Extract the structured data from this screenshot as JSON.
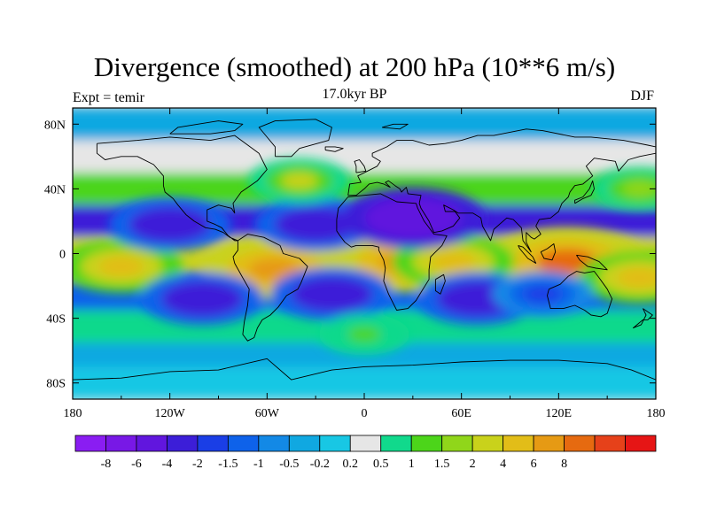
{
  "chart_data": {
    "type": "heatmap",
    "title": "Divergence (smoothed) at 200 hPa (10**6 m/s)",
    "left_label": "Expt = temir",
    "center_label": "17.0kyr BP",
    "right_label": "DJF",
    "x_ticks": [
      {
        "value": -180,
        "label": "180"
      },
      {
        "value": -120,
        "label": "120W"
      },
      {
        "value": -60,
        "label": "60W"
      },
      {
        "value": 0,
        "label": "0"
      },
      {
        "value": 60,
        "label": "60E"
      },
      {
        "value": 120,
        "label": "120E"
      },
      {
        "value": 180,
        "label": "180"
      }
    ],
    "y_ticks": [
      {
        "value": 80,
        "label": "80N"
      },
      {
        "value": 40,
        "label": "40N"
      },
      {
        "value": 0,
        "label": "0"
      },
      {
        "value": -40,
        "label": "40S"
      },
      {
        "value": -80,
        "label": "80S"
      }
    ],
    "xlim": [
      -180,
      180
    ],
    "ylim": [
      -90,
      90
    ],
    "colorbar": {
      "colors": [
        "#8a1df2",
        "#7818e6",
        "#6116de",
        "#3c1ed8",
        "#1a3ee6",
        "#0e62ea",
        "#1389e6",
        "#10a8e1",
        "#18c7e4",
        "#e6e6e6",
        "#11d98c",
        "#4cd51a",
        "#90d61a",
        "#c9d21b",
        "#e2bd18",
        "#e69a14",
        "#e66a10",
        "#e6411a",
        "#e61515"
      ],
      "labels": [
        "-8",
        "-6",
        "-4",
        "-2",
        "-1.5",
        "-1",
        "-0.5",
        "-0.2",
        "0.2",
        "0.5",
        "1",
        "1.5",
        "2",
        "4",
        "6",
        "8"
      ]
    },
    "field_features": [
      {
        "region": "tropical Africa",
        "lon": 25,
        "lat": -5,
        "value": 6
      },
      {
        "region": "Amazon basin",
        "lon": -55,
        "lat": -10,
        "value": 6
      },
      {
        "region": "Maritime Continent",
        "lon": 125,
        "lat": -5,
        "value": 8
      },
      {
        "region": "western Indian Ocean",
        "lon": 55,
        "lat": -5,
        "value": 4
      },
      {
        "region": "central Pacific",
        "lon": -150,
        "lat": -8,
        "value": 4
      },
      {
        "region": "South Pacific convergence zone",
        "lon": 170,
        "lat": -15,
        "value": 4
      },
      {
        "region": "North Pacific subtropics",
        "lon": -120,
        "lat": 18,
        "value": -4
      },
      {
        "region": "North Atlantic subtropics",
        "lon": -30,
        "lat": 18,
        "value": -4
      },
      {
        "region": "Sahara/Arabia",
        "lon": 30,
        "lat": 22,
        "value": -6
      },
      {
        "region": "South Atlantic subtropics",
        "lon": -20,
        "lat": -25,
        "value": -4
      },
      {
        "region": "Southern Indian Ocean",
        "lon": 70,
        "lat": -28,
        "value": -4
      },
      {
        "region": "South Pacific subtropics",
        "lon": -100,
        "lat": -28,
        "value": -4
      },
      {
        "region": "Western Australia",
        "lon": 110,
        "lat": -25,
        "value": -2
      },
      {
        "region": "North Atlantic storm track",
        "lon": -40,
        "lat": 45,
        "value": 2
      },
      {
        "region": "North Pacific storm track",
        "lon": 170,
        "lat": 40,
        "value": 1.5
      },
      {
        "region": "Southern Ocean",
        "lon": 0,
        "lat": -50,
        "value": 1
      }
    ]
  }
}
